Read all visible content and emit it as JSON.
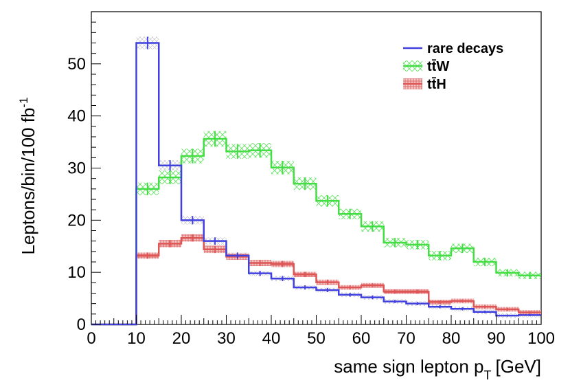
{
  "chart_data": {
    "type": "line",
    "subtype": "step-histogram-with-errors",
    "title": "",
    "xlabel": "same sign lepton p",
    "xlabel_sub": "T",
    "xlabel_unit": "[GeV]",
    "ylabel": "Leptons/bin/100 fb",
    "ylabel_sup": "-1",
    "xlim": [
      0,
      100
    ],
    "ylim": [
      0,
      60
    ],
    "x_ticks": [
      0,
      10,
      20,
      30,
      40,
      50,
      60,
      70,
      80,
      90,
      100
    ],
    "y_ticks": [
      0,
      10,
      20,
      30,
      40,
      50
    ],
    "bin_edges": [
      0,
      5,
      10,
      15,
      20,
      25,
      30,
      35,
      40,
      45,
      50,
      55,
      60,
      65,
      70,
      75,
      80,
      85,
      90,
      95,
      100
    ],
    "legend_position": "top-right",
    "series": [
      {
        "name": "rare decays",
        "color": "#4040e0",
        "values": [
          0,
          0,
          54,
          30.5,
          20,
          16,
          13.2,
          9.8,
          8.8,
          7.1,
          6.6,
          5.7,
          5.2,
          4.4,
          4.0,
          3.4,
          3.0,
          2.4,
          1.7,
          1.8
        ],
        "errors": [
          0,
          0,
          1.2,
          1.0,
          0.8,
          0.7,
          0.6,
          0.5,
          0.5,
          0.4,
          0.4,
          0.35,
          0.35,
          0.3,
          0.3,
          0.3,
          0.3,
          0.25,
          0.2,
          0.2
        ]
      },
      {
        "name": "tt̄W",
        "color": "#44dd44",
        "values": [
          0,
          0,
          26,
          28.2,
          32.3,
          35.6,
          33.2,
          33.4,
          30.1,
          27.0,
          23.7,
          21.2,
          18.8,
          15.7,
          15.3,
          13.2,
          14.6,
          12.0,
          9.9,
          9.4
        ],
        "errors": [
          0,
          0,
          1.2,
          1.3,
          1.4,
          1.5,
          1.4,
          1.4,
          1.3,
          1.2,
          1.1,
          1.0,
          1.0,
          0.9,
          0.9,
          0.9,
          0.9,
          0.8,
          0.7,
          0.7
        ]
      },
      {
        "name": "tt̄H",
        "color": "#dd5555",
        "values": [
          0,
          0,
          13.2,
          15.5,
          16.6,
          14.4,
          13.0,
          11.8,
          11.6,
          9.6,
          8.1,
          7.1,
          7.5,
          6.3,
          6.3,
          4.3,
          4.5,
          3.4,
          2.9,
          2.3
        ],
        "errors": [
          0,
          0,
          0.6,
          0.7,
          0.7,
          0.7,
          0.6,
          0.6,
          0.6,
          0.5,
          0.5,
          0.4,
          0.4,
          0.4,
          0.4,
          0.3,
          0.3,
          0.3,
          0.3,
          0.25
        ]
      }
    ]
  }
}
